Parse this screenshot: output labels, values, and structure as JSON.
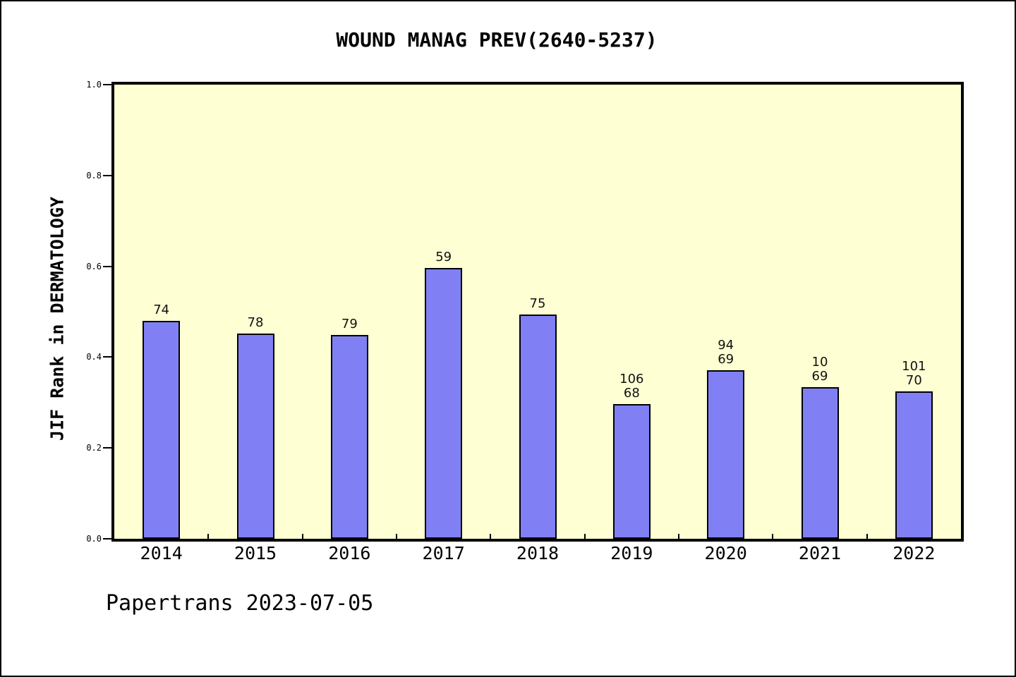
{
  "title": "WOUND MANAG PREV(2640-5237)",
  "footer": "Papertrans 2023-07-05",
  "chart_data": {
    "type": "bar",
    "title": "WOUND MANAG PREV(2640-5237)",
    "xlabel": "",
    "ylabel": "JIF Rank in DERMATOLOGY",
    "categories": [
      "2014",
      "2015",
      "2016",
      "2017",
      "2018",
      "2019",
      "2020",
      "2021",
      "2022"
    ],
    "values": [
      0.48,
      0.452,
      0.448,
      0.596,
      0.494,
      0.296,
      0.371,
      0.334,
      0.324
    ],
    "bar_labels": [
      "74",
      "78",
      "79",
      "59",
      "75",
      "106\n68",
      "94\n69",
      "10\n69",
      "101\n70"
    ],
    "ylim": [
      0.0,
      1.0
    ],
    "ytick_labels": [
      "0.0",
      "0.2",
      "0.4",
      "0.6",
      "0.8",
      "1.0"
    ],
    "ytick_values": [
      0.0,
      0.2,
      0.4,
      0.6,
      0.8,
      1.0
    ],
    "grid": false,
    "legend_position": "none",
    "colors": {
      "bar_fill": "#8080F4",
      "bar_border": "#000000",
      "plot_background": "#FFFFD4",
      "page_background": "#FFFFFF",
      "text": "#000000"
    }
  }
}
